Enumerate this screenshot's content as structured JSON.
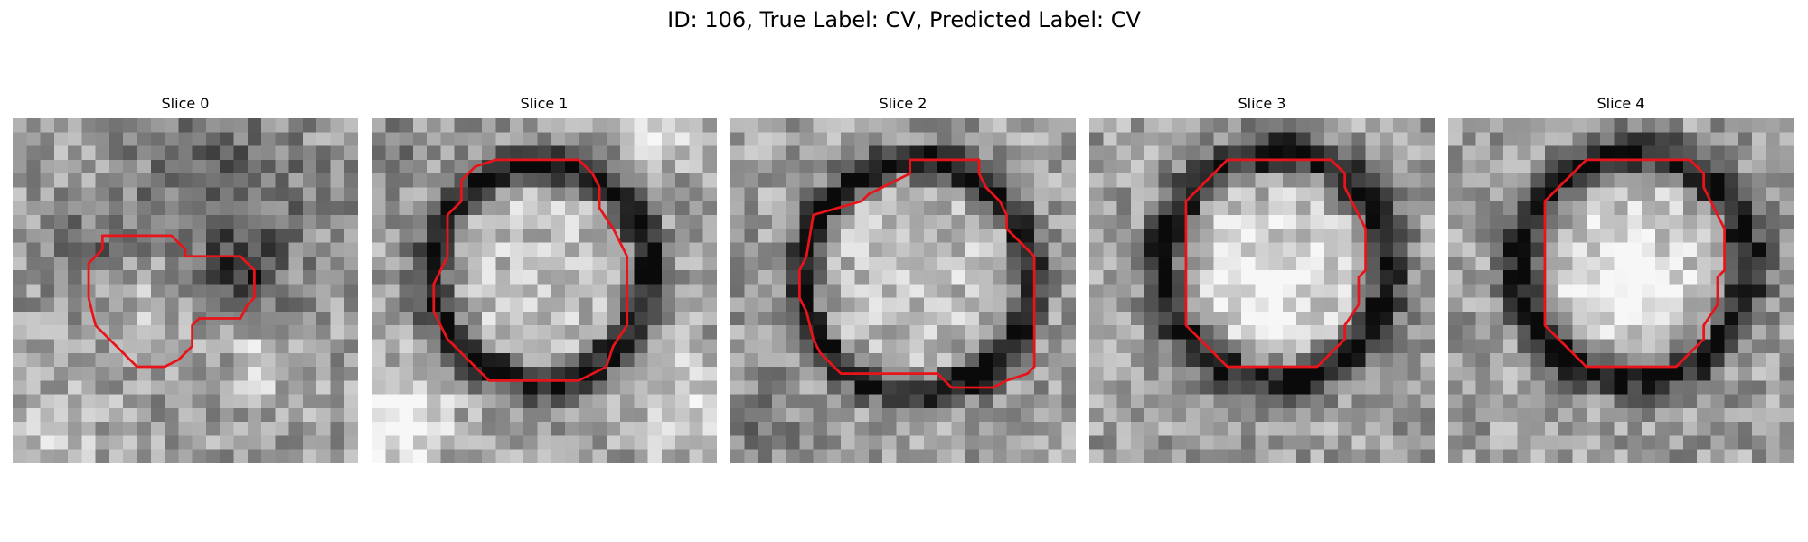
{
  "figure": {
    "title": "ID: 106, True Label: CV, Predicted Label: CV",
    "contour_color": "#e8141a"
  },
  "panels": [
    {
      "title": "Slice 0",
      "scene": "noisy",
      "outline": [
        [
          6.5,
          9.5
        ],
        [
          6.5,
          8.5
        ],
        [
          11.5,
          8.5
        ],
        [
          12.5,
          9.5
        ],
        [
          12.5,
          10
        ],
        [
          16.5,
          10
        ],
        [
          17.5,
          11
        ],
        [
          17.5,
          13
        ],
        [
          17,
          13.5
        ],
        [
          16.5,
          14.5
        ],
        [
          13.5,
          14.5
        ],
        [
          13,
          15
        ],
        [
          13,
          16.5
        ],
        [
          12,
          17.5
        ],
        [
          11,
          18
        ],
        [
          9,
          18
        ],
        [
          8,
          17
        ],
        [
          7,
          16
        ],
        [
          6,
          15
        ],
        [
          5.5,
          13
        ],
        [
          5.5,
          10.5
        ]
      ],
      "blobs": [
        {
          "cx": 15,
          "cy": 6,
          "r": 7,
          "v": -0.25
        },
        {
          "cx": 17,
          "cy": 11,
          "r": 2.5,
          "v": -0.3
        },
        {
          "cx": 5,
          "cy": 10,
          "r": 3,
          "v": -0.2
        },
        {
          "cx": 10,
          "cy": 13,
          "r": 3.5,
          "v": 0.15
        },
        {
          "cx": 18,
          "cy": 18,
          "r": 2,
          "v": 0.3
        },
        {
          "cx": 3,
          "cy": 24,
          "r": 4,
          "v": 0.15
        }
      ]
    },
    {
      "title": "Slice 1",
      "scene": "ring",
      "outline": [
        [
          6.5,
          4.5
        ],
        [
          7.5,
          3.5
        ],
        [
          9,
          3
        ],
        [
          15,
          3
        ],
        [
          16,
          4
        ],
        [
          16.5,
          5
        ],
        [
          16.5,
          6.5
        ],
        [
          17.5,
          8
        ],
        [
          18,
          9
        ],
        [
          18.5,
          10
        ],
        [
          18.5,
          15
        ],
        [
          17.5,
          16.5
        ],
        [
          17,
          18
        ],
        [
          16,
          18.5
        ],
        [
          15,
          19
        ],
        [
          8.5,
          19
        ],
        [
          5.5,
          16
        ],
        [
          5,
          15
        ],
        [
          4.5,
          14
        ],
        [
          4.5,
          12
        ],
        [
          5,
          11
        ],
        [
          5.5,
          10
        ],
        [
          5.5,
          7
        ],
        [
          6.5,
          6
        ]
      ],
      "ring": {
        "cx": 12.2,
        "cy": 11.2,
        "r": 7.8,
        "w": 1.4
      },
      "blobs": [
        {
          "cx": 2,
          "cy": 22,
          "r": 3.5,
          "v": 0.4
        },
        {
          "cx": 23,
          "cy": 21,
          "r": 4,
          "v": 0.25
        },
        {
          "cx": 2,
          "cy": 3,
          "r": 3,
          "v": -0.1
        },
        {
          "cx": 21,
          "cy": 1,
          "r": 2.5,
          "v": 0.2
        }
      ]
    },
    {
      "title": "Slice 2",
      "scene": "ring",
      "outline": [
        [
          9.5,
          6
        ],
        [
          10,
          5.5
        ],
        [
          11,
          5
        ],
        [
          12,
          4.5
        ],
        [
          13,
          4
        ],
        [
          13,
          3
        ],
        [
          18,
          3
        ],
        [
          18,
          4
        ],
        [
          18.5,
          5
        ],
        [
          19.5,
          6
        ],
        [
          20,
          7
        ],
        [
          20,
          8
        ],
        [
          21,
          9
        ],
        [
          22,
          10
        ],
        [
          22,
          13
        ],
        [
          22,
          18
        ],
        [
          21.5,
          18.5
        ],
        [
          20,
          19
        ],
        [
          19,
          19.5
        ],
        [
          16,
          19.5
        ],
        [
          15,
          18.5
        ],
        [
          8,
          18.5
        ],
        [
          6.5,
          17
        ],
        [
          6,
          16
        ],
        [
          5.5,
          14
        ],
        [
          5,
          13
        ],
        [
          5,
          11
        ],
        [
          5.5,
          10
        ],
        [
          6,
          7
        ]
      ],
      "ring": {
        "cx": 13.5,
        "cy": 11.5,
        "r": 8.3,
        "w": 1.3
      },
      "blobs": [
        {
          "cx": 18,
          "cy": 18,
          "r": 1.5,
          "v": -0.3
        },
        {
          "cx": 2,
          "cy": 22,
          "r": 3,
          "v": -0.15
        }
      ]
    },
    {
      "title": "Slice 3",
      "scene": "ring",
      "outline": [
        [
          7,
          6
        ],
        [
          8,
          5
        ],
        [
          9.5,
          3.5
        ],
        [
          10,
          3
        ],
        [
          17.5,
          3
        ],
        [
          18.5,
          4
        ],
        [
          18.5,
          5
        ],
        [
          19,
          6
        ],
        [
          19.5,
          7
        ],
        [
          20,
          8
        ],
        [
          20,
          11
        ],
        [
          19.5,
          11.5
        ],
        [
          19.5,
          13.5
        ],
        [
          18.5,
          15
        ],
        [
          18.5,
          16
        ],
        [
          17.5,
          17
        ],
        [
          16.5,
          18
        ],
        [
          10,
          18
        ],
        [
          9,
          17
        ],
        [
          8,
          16
        ],
        [
          7,
          15
        ],
        [
          7,
          13
        ]
      ],
      "ring": {
        "cx": 13.5,
        "cy": 10.7,
        "r": 8.2,
        "w": 1.5
      },
      "blobs": [
        {
          "cx": 13,
          "cy": 12,
          "r": 4,
          "v": 0.25
        }
      ]
    },
    {
      "title": "Slice 4",
      "scene": "ring",
      "outline": [
        [
          7,
          6
        ],
        [
          8,
          5
        ],
        [
          9.5,
          3.5
        ],
        [
          10,
          3
        ],
        [
          17.5,
          3
        ],
        [
          18.5,
          4
        ],
        [
          18.5,
          5
        ],
        [
          19,
          6
        ],
        [
          19.5,
          7
        ],
        [
          20,
          8
        ],
        [
          20,
          11
        ],
        [
          19.5,
          11.5
        ],
        [
          19.5,
          13.5
        ],
        [
          18.5,
          15
        ],
        [
          18.5,
          16
        ],
        [
          17.5,
          17
        ],
        [
          16.5,
          18
        ],
        [
          10,
          18
        ],
        [
          9,
          17
        ],
        [
          8,
          16
        ],
        [
          7,
          15
        ],
        [
          7,
          13
        ]
      ],
      "ring": {
        "cx": 13.5,
        "cy": 10.7,
        "r": 8.2,
        "w": 1.5
      },
      "blobs": [
        {
          "cx": 13,
          "cy": 12,
          "r": 4,
          "v": 0.25
        }
      ]
    }
  ]
}
